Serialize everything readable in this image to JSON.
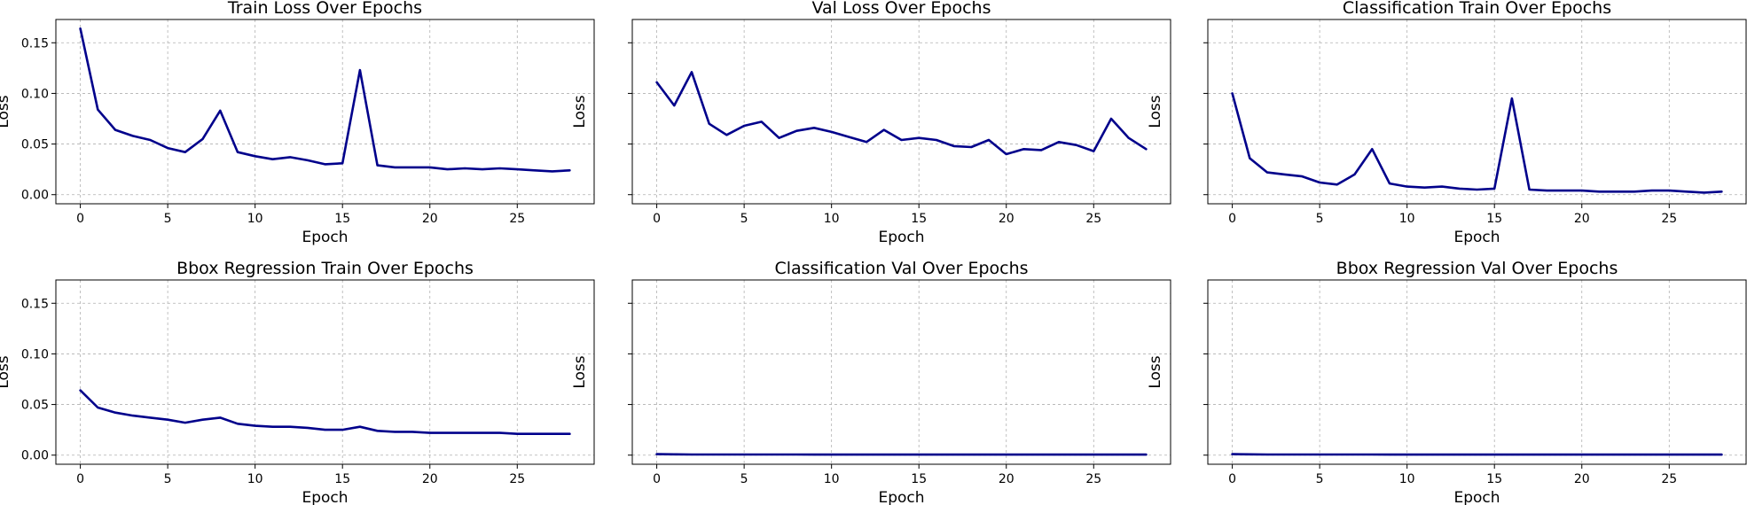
{
  "chart_data": [
    {
      "type": "line",
      "title": "Train Loss Over Epochs",
      "xlabel": "Epoch",
      "ylabel": "Loss",
      "grid": true,
      "color": "#00008b",
      "xlim": [
        -1.4,
        29.4
      ],
      "ylim": [
        -0.009,
        0.173
      ],
      "xticks": [
        0,
        5,
        10,
        15,
        20,
        25
      ],
      "yticks": [
        0.0,
        0.05,
        0.1,
        0.15
      ],
      "show_yticklabels": true,
      "x": [
        0,
        1,
        2,
        3,
        4,
        5,
        6,
        7,
        8,
        9,
        10,
        11,
        12,
        13,
        14,
        15,
        16,
        17,
        18,
        19,
        20,
        21,
        22,
        23,
        24,
        25,
        26,
        27,
        28
      ],
      "values": [
        0.164,
        0.084,
        0.064,
        0.058,
        0.054,
        0.046,
        0.042,
        0.055,
        0.083,
        0.042,
        0.038,
        0.035,
        0.037,
        0.034,
        0.03,
        0.031,
        0.123,
        0.029,
        0.027,
        0.027,
        0.027,
        0.025,
        0.026,
        0.025,
        0.026,
        0.025,
        0.024,
        0.023,
        0.024
      ]
    },
    {
      "type": "line",
      "title": "Val Loss Over Epochs",
      "xlabel": "Epoch",
      "ylabel": "Loss",
      "grid": true,
      "color": "#00008b",
      "xlim": [
        -1.4,
        29.4
      ],
      "ylim": [
        -0.009,
        0.173
      ],
      "xticks": [
        0,
        5,
        10,
        15,
        20,
        25
      ],
      "yticks": [
        0.0,
        0.05,
        0.1,
        0.15
      ],
      "show_yticklabels": false,
      "x": [
        0,
        1,
        2,
        3,
        4,
        5,
        6,
        7,
        8,
        9,
        10,
        11,
        12,
        13,
        14,
        15,
        16,
        17,
        18,
        19,
        20,
        21,
        22,
        23,
        24,
        25,
        26,
        27,
        28
      ],
      "values": [
        0.111,
        0.088,
        0.121,
        0.07,
        0.059,
        0.068,
        0.072,
        0.056,
        0.063,
        0.066,
        0.062,
        0.057,
        0.052,
        0.064,
        0.054,
        0.056,
        0.054,
        0.048,
        0.047,
        0.054,
        0.04,
        0.045,
        0.044,
        0.052,
        0.049,
        0.043,
        0.075,
        0.056,
        0.045
      ]
    },
    {
      "type": "line",
      "title": "Classification Train Over Epochs",
      "xlabel": "Epoch",
      "ylabel": "Loss",
      "grid": true,
      "color": "#00008b",
      "xlim": [
        -1.4,
        29.4
      ],
      "ylim": [
        -0.009,
        0.173
      ],
      "xticks": [
        0,
        5,
        10,
        15,
        20,
        25
      ],
      "yticks": [
        0.0,
        0.05,
        0.1,
        0.15
      ],
      "show_yticklabels": false,
      "x": [
        0,
        1,
        2,
        3,
        4,
        5,
        6,
        7,
        8,
        9,
        10,
        11,
        12,
        13,
        14,
        15,
        16,
        17,
        18,
        19,
        20,
        21,
        22,
        23,
        24,
        25,
        26,
        27,
        28
      ],
      "values": [
        0.1,
        0.036,
        0.022,
        0.02,
        0.018,
        0.012,
        0.01,
        0.02,
        0.045,
        0.011,
        0.008,
        0.007,
        0.008,
        0.006,
        0.005,
        0.006,
        0.095,
        0.005,
        0.004,
        0.004,
        0.004,
        0.003,
        0.003,
        0.003,
        0.004,
        0.004,
        0.003,
        0.002,
        0.003
      ]
    },
    {
      "type": "line",
      "title": "Bbox Regression Train Over Epochs",
      "xlabel": "Epoch",
      "ylabel": "Loss",
      "grid": true,
      "color": "#00008b",
      "xlim": [
        -1.4,
        29.4
      ],
      "ylim": [
        -0.009,
        0.173
      ],
      "xticks": [
        0,
        5,
        10,
        15,
        20,
        25
      ],
      "yticks": [
        0.0,
        0.05,
        0.1,
        0.15
      ],
      "show_yticklabels": true,
      "x": [
        0,
        1,
        2,
        3,
        4,
        5,
        6,
        7,
        8,
        9,
        10,
        11,
        12,
        13,
        14,
        15,
        16,
        17,
        18,
        19,
        20,
        21,
        22,
        23,
        24,
        25,
        26,
        27,
        28
      ],
      "values": [
        0.064,
        0.047,
        0.042,
        0.039,
        0.037,
        0.035,
        0.032,
        0.035,
        0.037,
        0.031,
        0.029,
        0.028,
        0.028,
        0.027,
        0.025,
        0.025,
        0.028,
        0.024,
        0.023,
        0.023,
        0.022,
        0.022,
        0.022,
        0.022,
        0.022,
        0.021,
        0.021,
        0.021,
        0.021
      ]
    },
    {
      "type": "line",
      "title": "Classification Val Over Epochs",
      "xlabel": "Epoch",
      "ylabel": "Loss",
      "grid": true,
      "color": "#00008b",
      "xlim": [
        -1.4,
        29.4
      ],
      "ylim": [
        -0.009,
        0.173
      ],
      "xticks": [
        0,
        5,
        10,
        15,
        20,
        25
      ],
      "yticks": [
        0.0,
        0.05,
        0.1,
        0.15
      ],
      "show_yticklabels": false,
      "x": [
        0,
        1,
        2,
        3,
        4,
        5,
        6,
        7,
        8,
        9,
        10,
        11,
        12,
        13,
        14,
        15,
        16,
        17,
        18,
        19,
        20,
        21,
        22,
        23,
        24,
        25,
        26,
        27,
        28
      ],
      "values": [
        0.001,
        0.0008,
        0.0006,
        0.0006,
        0.0006,
        0.0006,
        0.0006,
        0.0006,
        0.0006,
        0.0005,
        0.0005,
        0.0005,
        0.0005,
        0.0005,
        0.0005,
        0.0005,
        0.0005,
        0.0005,
        0.0005,
        0.0005,
        0.0005,
        0.0005,
        0.0005,
        0.0005,
        0.0005,
        0.0005,
        0.0005,
        0.0005,
        0.0005
      ]
    },
    {
      "type": "line",
      "title": "Bbox Regression Val Over Epochs",
      "xlabel": "Epoch",
      "ylabel": "Loss",
      "grid": true,
      "color": "#00008b",
      "xlim": [
        -1.4,
        29.4
      ],
      "ylim": [
        -0.009,
        0.173
      ],
      "xticks": [
        0,
        5,
        10,
        15,
        20,
        25
      ],
      "yticks": [
        0.0,
        0.05,
        0.1,
        0.15
      ],
      "show_yticklabels": false,
      "x": [
        0,
        1,
        2,
        3,
        4,
        5,
        6,
        7,
        8,
        9,
        10,
        11,
        12,
        13,
        14,
        15,
        16,
        17,
        18,
        19,
        20,
        21,
        22,
        23,
        24,
        25,
        26,
        27,
        28
      ],
      "values": [
        0.001,
        0.0008,
        0.0006,
        0.0006,
        0.0006,
        0.0006,
        0.0006,
        0.0006,
        0.0006,
        0.0005,
        0.0005,
        0.0005,
        0.0005,
        0.0005,
        0.0005,
        0.0005,
        0.0005,
        0.0005,
        0.0005,
        0.0005,
        0.0005,
        0.0005,
        0.0005,
        0.0005,
        0.0005,
        0.0005,
        0.0005,
        0.0005,
        0.0005
      ]
    }
  ]
}
